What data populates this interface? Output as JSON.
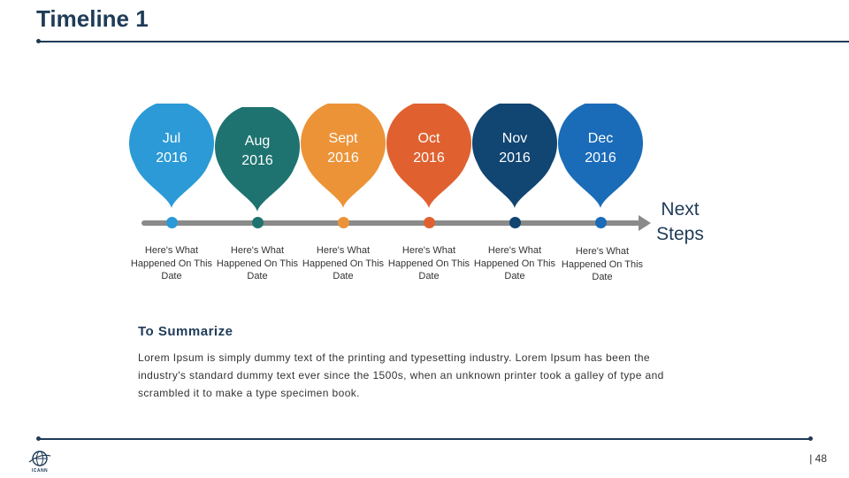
{
  "slide": {
    "title": "Timeline 1",
    "page_number": "| 48"
  },
  "timeline": {
    "months": [
      {
        "month": "Jul",
        "year": "2016",
        "color": "#2b9ad6",
        "caption": "Here's What Happened On This Date"
      },
      {
        "month": "Aug",
        "year": "2016",
        "color": "#1e7370",
        "caption": "Here's What Happened On This Date"
      },
      {
        "month": "Sept",
        "year": "2016",
        "color": "#ec9338",
        "caption": "Here's What Happened On This Date"
      },
      {
        "month": "Oct",
        "year": "2016",
        "color": "#e0612f",
        "caption": "Here's What Happened On This Date"
      },
      {
        "month": "Nov",
        "year": "2016",
        "color": "#114572",
        "caption": "Here's What Happened On This Date"
      },
      {
        "month": "Dec",
        "year": "2016",
        "color": "#1b6cb8",
        "caption": "Here's What Happened On This Date"
      }
    ],
    "next_steps": "Next Steps",
    "track_color": "#8a8a8a"
  },
  "summary": {
    "title": "To Summarize",
    "text": "Lorem Ipsum is simply dummy text of the printing and typesetting industry. Lorem Ipsum has been the industry's standard dummy text ever since the 1500s, when an unknown printer took a galley of type and scrambled it to make a type specimen book."
  },
  "footer": {
    "logo_text": "ICANN",
    "logo_icon": "globe-icon"
  }
}
